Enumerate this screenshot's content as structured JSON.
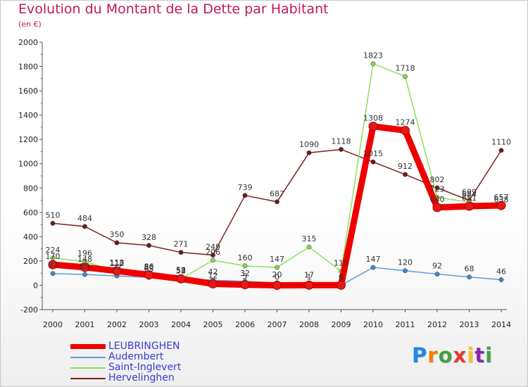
{
  "chart_data": {
    "type": "line",
    "title": "Evolution du Montant de la Dette par Habitant",
    "subtitle": "(en €)",
    "x": [
      "2000",
      "2001",
      "2002",
      "2003",
      "2004",
      "2005",
      "2006",
      "2007",
      "2008",
      "2009",
      "2010",
      "2011",
      "2012",
      "2013",
      "2014"
    ],
    "ylim": [
      -200,
      2000
    ],
    "yticks": [
      -200,
      0,
      200,
      400,
      600,
      800,
      1000,
      1200,
      1400,
      1600,
      1800,
      2000
    ],
    "grid": false,
    "legend_position": "bottom-left",
    "series": [
      {
        "name": "LEUBRINGHEN",
        "color": "#ee0000",
        "width": 9,
        "marker": "#e61919",
        "values": [
          170,
          148,
          118,
          86,
          53,
          12,
          5,
          0,
          1,
          1,
          1308,
          1274,
          640,
          651,
          657
        ]
      },
      {
        "name": "Audembert",
        "color": "#5b9bd5",
        "width": 1.5,
        "marker": "#3e88cc",
        "values": [
          97,
          89,
          77,
          65,
          58,
          42,
          32,
          20,
          17,
          0,
          147,
          120,
          92,
          68,
          46
        ]
      },
      {
        "name": "Saint-Inglevert",
        "color": "#8fe05c",
        "width": 1.5,
        "marker": "#84d64a",
        "values": [
          224,
          196,
          112,
          80,
          52,
          206,
          160,
          147,
          315,
          115,
          1823,
          1718,
          723,
          684,
          638
        ]
      },
      {
        "name": "Hervelinghen",
        "color": "#7a1f1f",
        "width": 1.5,
        "marker": "#6e1a1a",
        "values": [
          510,
          484,
          350,
          328,
          271,
          249,
          739,
          687,
          1090,
          1118,
          1015,
          912,
          802,
          699,
          1110
        ]
      }
    ]
  },
  "logo": {
    "p": "P",
    "r": "r",
    "o": "o",
    "x": "x",
    "i": "i",
    "t": "t",
    "i2": "i"
  }
}
